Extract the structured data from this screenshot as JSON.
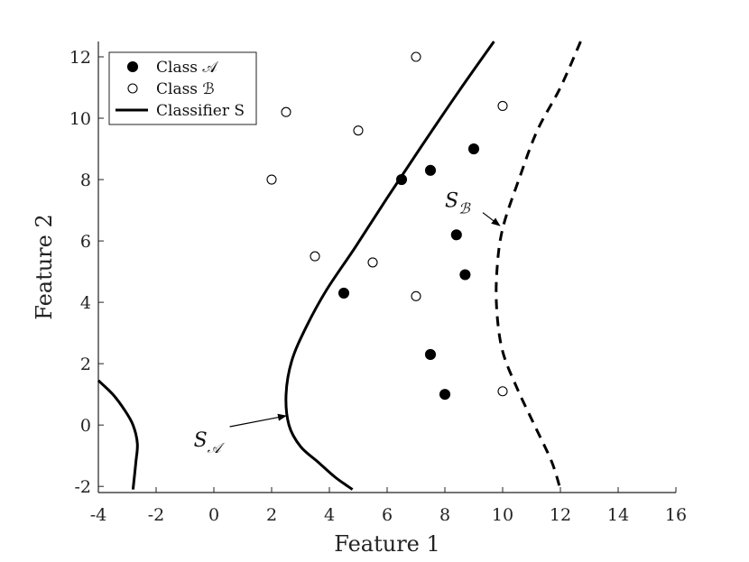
{
  "chart_data": {
    "type": "scatter",
    "xlabel": "Feature 1",
    "ylabel": "Feature 2",
    "xlim": [
      -4,
      16
    ],
    "ylim": [
      -2.2,
      12.5
    ],
    "grid": false,
    "legend_position": "top-left",
    "x_ticks": [
      -4,
      -2,
      0,
      2,
      4,
      6,
      8,
      10,
      12,
      14,
      16
    ],
    "x_tick_labels": [
      "-4",
      "-2",
      "0",
      "2",
      "4",
      "6",
      "8",
      "10",
      "12",
      "14",
      "16"
    ],
    "y_ticks": [
      -2,
      0,
      2,
      4,
      6,
      8,
      10,
      12
    ],
    "y_tick_labels": [
      "-2",
      "0",
      "2",
      "4",
      "6",
      "8",
      "10",
      "12"
    ],
    "series": [
      {
        "name": "Class 𝒜",
        "marker": "filled-circle",
        "color": "#000000",
        "x": [
          6.5,
          7.5,
          9.0,
          8.4,
          8.7,
          4.5,
          7.5,
          8.0
        ],
        "y": [
          8.0,
          8.3,
          9.0,
          6.2,
          4.9,
          4.3,
          2.3,
          1.0
        ]
      },
      {
        "name": "Class ℬ",
        "marker": "open-circle",
        "color": "#000000",
        "x": [
          7.0,
          2.5,
          5.0,
          2.0,
          10.0,
          3.5,
          5.5,
          7.0,
          10.0
        ],
        "y": [
          12.0,
          10.2,
          9.6,
          8.0,
          10.4,
          5.5,
          5.3,
          4.2,
          1.1
        ]
      }
    ],
    "curves": [
      {
        "name": "Classifier S",
        "style": "solid",
        "x": [
          9.7,
          8.5,
          7.2,
          6.0,
          4.9,
          3.9,
          3.2,
          2.7,
          2.5,
          2.6,
          3.0,
          3.6,
          4.2,
          4.8
        ],
        "y": [
          12.5,
          10.9,
          9.1,
          7.4,
          5.8,
          4.4,
          3.2,
          2.1,
          1.0,
          0.0,
          -0.7,
          -1.2,
          -1.7,
          -2.1
        ]
      },
      {
        "name": "Classifier S (left branch)",
        "style": "solid",
        "x": [
          -4.0,
          -3.5,
          -3.1,
          -2.8,
          -2.65,
          -2.7,
          -2.8
        ],
        "y": [
          1.45,
          1.0,
          0.5,
          0.0,
          -0.6,
          -1.2,
          -2.1
        ]
      },
      {
        "name": "S_B",
        "style": "dashed",
        "x": [
          12.7,
          12.0,
          11.2,
          10.6,
          10.0,
          9.8,
          9.8,
          10.0,
          10.5,
          11.1,
          11.7,
          12.0
        ],
        "y": [
          12.5,
          11.0,
          9.6,
          8.1,
          6.4,
          5.0,
          3.7,
          2.4,
          1.2,
          0.0,
          -1.2,
          -2.1
        ]
      }
    ],
    "annotations": [
      {
        "text": "S",
        "sub": "𝒜",
        "x": -0.7,
        "y": -0.7,
        "arrow_to": [
          2.5,
          0.3
        ]
      },
      {
        "text": "S",
        "sub": "ℬ",
        "x": 8.0,
        "y": 7.1,
        "arrow_to": [
          9.9,
          6.5
        ]
      }
    ],
    "legend": [
      {
        "label": "Class 𝒜",
        "marker": "filled-circle"
      },
      {
        "label": "Class ℬ",
        "marker": "open-circle"
      },
      {
        "label": "Classifier S",
        "marker": "line"
      }
    ]
  }
}
